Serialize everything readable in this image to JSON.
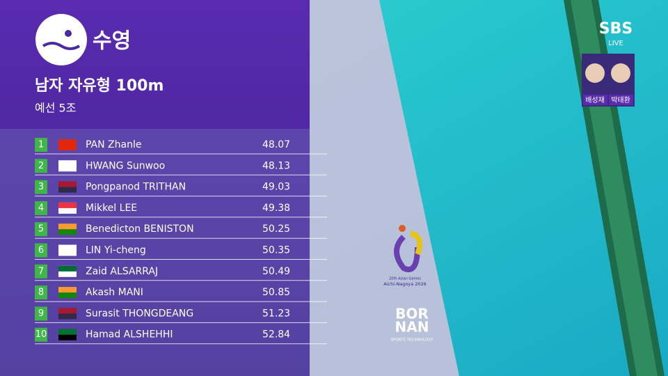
{
  "header": {
    "sport": "수영",
    "event": "남자 자유형 100m",
    "heat": "예선 5조"
  },
  "table": {
    "rows": [
      {
        "rank": 1,
        "name": "PAN Zhanle",
        "time": 48.07
      },
      {
        "rank": 2,
        "name": "HWANG Sunwoo",
        "time": 48.13
      },
      {
        "rank": 3,
        "name": "Pongpanod TRITHAN",
        "time": 49.03
      },
      {
        "rank": 4,
        "name": "Mikkel LEE",
        "time": 49.38
      },
      {
        "rank": 5,
        "name": "Benedicton BENISTON",
        "time": 50.25
      },
      {
        "rank": 6,
        "name": "LIN Yi-cheng",
        "time": 50.35
      },
      {
        "rank": 7,
        "name": "Zaid ALSARRAJ",
        "time": 50.49
      },
      {
        "rank": 8,
        "name": "Akash MANI",
        "time": 50.85
      },
      {
        "rank": 9,
        "name": "Surasit THONGDEANG",
        "time": 51.23
      },
      {
        "rank": 10,
        "name": "Hamad ALSHEHHI",
        "time": 52.84
      }
    ]
  },
  "broadcaster": {
    "logo": "SBS",
    "status": "LIVE",
    "commentators": [
      "배성재",
      "박태환"
    ]
  },
  "games_logo": {
    "line1": "20th Asian Games",
    "line2": "Aichi-Nagoya 2026"
  },
  "sponsor": {
    "line1": "BOR",
    "line2": "NAN",
    "tagline": "SPORTS TECHNOLOGY"
  }
}
